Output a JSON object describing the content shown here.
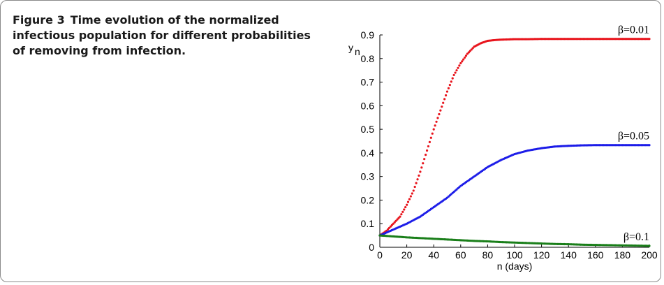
{
  "caption": {
    "label": "Figure 3",
    "text": "Time evolution of the normalized infectious population for different probabilities of removing from infection."
  },
  "chart_data": {
    "type": "scatter",
    "title": "",
    "xlabel": "n (days)",
    "ylabel": "y",
    "ylabel_subscript": "n",
    "xlim": [
      0,
      200
    ],
    "ylim": [
      0,
      0.9
    ],
    "xticks": [
      0,
      20,
      40,
      60,
      80,
      100,
      120,
      140,
      160,
      180,
      200
    ],
    "yticks": [
      0,
      0.1,
      0.2,
      0.3,
      0.4,
      0.5,
      0.6,
      0.7,
      0.8,
      0.9
    ],
    "grid": false,
    "legend": "inline labels at right end of curves",
    "series": [
      {
        "name": "β=0.01",
        "color": "#e8141c",
        "x": [
          0,
          5,
          10,
          15,
          20,
          25,
          30,
          35,
          40,
          45,
          50,
          55,
          60,
          65,
          70,
          75,
          80,
          85,
          90,
          95,
          100,
          110,
          120,
          140,
          160,
          180,
          200
        ],
        "y": [
          0.05,
          0.07,
          0.1,
          0.13,
          0.18,
          0.24,
          0.32,
          0.41,
          0.5,
          0.58,
          0.66,
          0.73,
          0.78,
          0.82,
          0.85,
          0.865,
          0.875,
          0.878,
          0.88,
          0.881,
          0.882,
          0.882,
          0.883,
          0.883,
          0.883,
          0.883,
          0.883
        ]
      },
      {
        "name": "β=0.05",
        "color": "#1c1ce8",
        "x": [
          0,
          10,
          20,
          30,
          40,
          50,
          60,
          70,
          80,
          90,
          100,
          110,
          120,
          130,
          140,
          150,
          160,
          170,
          180,
          190,
          200
        ],
        "y": [
          0.05,
          0.075,
          0.1,
          0.13,
          0.17,
          0.21,
          0.26,
          0.3,
          0.34,
          0.37,
          0.395,
          0.41,
          0.42,
          0.427,
          0.43,
          0.432,
          0.433,
          0.433,
          0.433,
          0.433,
          0.433
        ]
      },
      {
        "name": "β=0.1",
        "color": "#1a7f1a",
        "x": [
          0,
          10,
          20,
          30,
          40,
          50,
          60,
          70,
          80,
          90,
          100,
          110,
          120,
          130,
          140,
          150,
          160,
          170,
          180,
          190,
          200
        ],
        "y": [
          0.05,
          0.046,
          0.042,
          0.039,
          0.036,
          0.033,
          0.03,
          0.027,
          0.025,
          0.022,
          0.02,
          0.018,
          0.016,
          0.014,
          0.013,
          0.011,
          0.01,
          0.009,
          0.008,
          0.007,
          0.006
        ]
      }
    ]
  }
}
